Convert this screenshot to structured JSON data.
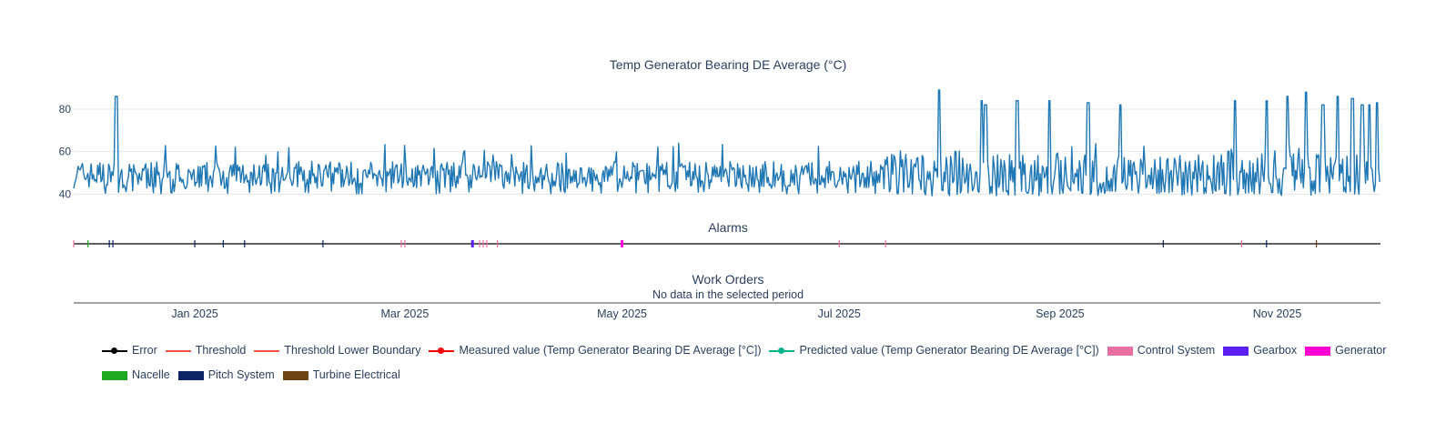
{
  "colors": {
    "series": "#1f77b4",
    "grid": "#e5e5e5",
    "axis": "#444444",
    "error": "#000000",
    "threshold": "#ef553b",
    "measured": "#ff0000",
    "predicted": "#00b38a",
    "control_system": "#e76fa2",
    "gearbox": "#5d1ef7",
    "generator": "#ff00d4",
    "nacelle": "#1faa22",
    "pitch_system": "#0b2463",
    "turbine_electrical": "#6b4412"
  },
  "chart_data": [
    {
      "type": "line",
      "title": "Temp Generator Bearing DE Average (°C)",
      "ylim": [
        38,
        92
      ],
      "yticks": [
        40,
        60,
        80
      ],
      "xlim": [
        "2024-11-28",
        "2025-11-30"
      ],
      "baseline_band": [
        40,
        58
      ],
      "spikes": [
        {
          "date": "2024-12-10",
          "value": 86
        },
        {
          "date": "2025-07-29",
          "value": 89
        },
        {
          "date": "2025-08-10",
          "value": 84
        },
        {
          "date": "2025-08-11",
          "value": 82
        },
        {
          "date": "2025-08-20",
          "value": 84
        },
        {
          "date": "2025-08-29",
          "value": 84
        },
        {
          "date": "2025-09-09",
          "value": 83
        },
        {
          "date": "2025-09-18",
          "value": 82
        },
        {
          "date": "2025-10-20",
          "value": 84
        },
        {
          "date": "2025-10-29",
          "value": 84
        },
        {
          "date": "2025-11-04",
          "value": 86
        },
        {
          "date": "2025-11-09",
          "value": 88
        },
        {
          "date": "2025-11-14",
          "value": 82
        },
        {
          "date": "2025-11-18",
          "value": 86
        },
        {
          "date": "2025-11-22",
          "value": 85
        },
        {
          "date": "2025-11-25",
          "value": 82
        },
        {
          "date": "2025-11-27",
          "value": 82
        },
        {
          "date": "2025-11-29",
          "value": 83
        }
      ]
    },
    {
      "type": "timeline",
      "title": "Alarms",
      "events": [
        {
          "date": "2024-11-28",
          "category": "Control System"
        },
        {
          "date": "2024-12-02",
          "category": "Nacelle"
        },
        {
          "date": "2024-12-08",
          "category": "Pitch System"
        },
        {
          "date": "2024-12-09",
          "category": "Pitch System"
        },
        {
          "date": "2025-01-01",
          "category": "Pitch System"
        },
        {
          "date": "2025-01-09",
          "category": "Pitch System"
        },
        {
          "date": "2025-01-15",
          "category": "Pitch System"
        },
        {
          "date": "2025-02-06",
          "category": "Pitch System"
        },
        {
          "date": "2025-02-28",
          "category": "Control System"
        },
        {
          "date": "2025-03-01",
          "category": "Control System"
        },
        {
          "date": "2025-03-20",
          "category": "Gearbox"
        },
        {
          "date": "2025-03-22",
          "category": "Control System"
        },
        {
          "date": "2025-03-23",
          "category": "Control System"
        },
        {
          "date": "2025-03-24",
          "category": "Control System"
        },
        {
          "date": "2025-03-27",
          "category": "Control System"
        },
        {
          "date": "2025-05-01",
          "category": "Generator"
        },
        {
          "date": "2025-07-01",
          "category": "Control System"
        },
        {
          "date": "2025-07-14",
          "category": "Control System"
        },
        {
          "date": "2025-09-30",
          "category": "Pitch System"
        },
        {
          "date": "2025-10-22",
          "category": "Control System"
        },
        {
          "date": "2025-10-29",
          "category": "Pitch System"
        },
        {
          "date": "2025-11-12",
          "category": "Turbine Electrical"
        }
      ]
    },
    {
      "type": "timeline",
      "title": "Work Orders",
      "subtitle": "No data in the selected period",
      "events": []
    }
  ],
  "xaxis": {
    "ticks": [
      {
        "date": "2025-01-01",
        "label": "Jan 2025"
      },
      {
        "date": "2025-03-01",
        "label": "Mar 2025"
      },
      {
        "date": "2025-05-01",
        "label": "May 2025"
      },
      {
        "date": "2025-07-01",
        "label": "Jul 2025"
      },
      {
        "date": "2025-09-01",
        "label": "Sep 2025"
      },
      {
        "date": "2025-11-01",
        "label": "Nov 2025"
      }
    ]
  },
  "legend": {
    "rows": [
      [
        {
          "label": "Error",
          "type": "line-marker",
          "color": "error"
        },
        {
          "label": "Threshold",
          "type": "line",
          "color": "threshold"
        },
        {
          "label": "Threshold Lower Boundary",
          "type": "line",
          "color": "threshold"
        },
        {
          "label": "Measured value (Temp Generator Bearing DE Average [°C])",
          "type": "line-marker",
          "color": "measured"
        },
        {
          "label": "Predicted value (Temp Generator Bearing DE Average [°C])",
          "type": "line-marker",
          "color": "predicted"
        },
        {
          "label": "Control System",
          "type": "box",
          "color": "control_system"
        },
        {
          "label": "Gearbox",
          "type": "box",
          "color": "gearbox"
        },
        {
          "label": "Generator",
          "type": "box",
          "color": "generator"
        }
      ],
      [
        {
          "label": "Nacelle",
          "type": "box",
          "color": "nacelle"
        },
        {
          "label": "Pitch System",
          "type": "box",
          "color": "pitch_system"
        },
        {
          "label": "Turbine Electrical",
          "type": "box",
          "color": "turbine_electrical"
        }
      ]
    ]
  }
}
